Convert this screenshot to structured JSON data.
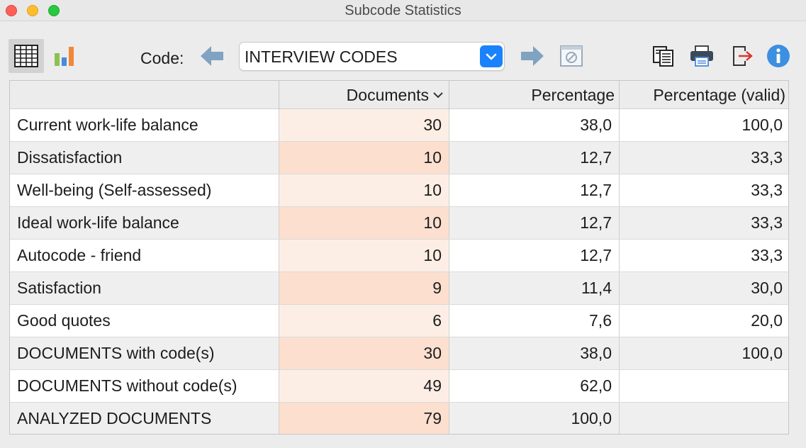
{
  "window": {
    "title": "Subcode Statistics"
  },
  "toolbar": {
    "code_label": "Code:",
    "selected_code": "INTERVIEW CODES"
  },
  "table": {
    "columns": [
      "",
      "Documents",
      "Percentage",
      "Percentage (valid)"
    ],
    "rows": [
      {
        "name": "Current work-life balance",
        "documents": "30",
        "percentage": "38,0",
        "percentage_valid": "100,0"
      },
      {
        "name": "Dissatisfaction",
        "documents": "10",
        "percentage": "12,7",
        "percentage_valid": "33,3"
      },
      {
        "name": "Well-being (Self-assessed)",
        "documents": "10",
        "percentage": "12,7",
        "percentage_valid": "33,3"
      },
      {
        "name": "Ideal work-life balance",
        "documents": "10",
        "percentage": "12,7",
        "percentage_valid": "33,3"
      },
      {
        "name": "Autocode - friend",
        "documents": "10",
        "percentage": "12,7",
        "percentage_valid": "33,3"
      },
      {
        "name": "Satisfaction",
        "documents": "9",
        "percentage": "11,4",
        "percentage_valid": "30,0"
      },
      {
        "name": "Good quotes",
        "documents": "6",
        "percentage": "7,6",
        "percentage_valid": "20,0"
      },
      {
        "name": "DOCUMENTS with code(s)",
        "documents": "30",
        "percentage": "38,0",
        "percentage_valid": "100,0"
      },
      {
        "name": "DOCUMENTS without code(s)",
        "documents": "49",
        "percentage": "62,0",
        "percentage_valid": ""
      },
      {
        "name": "ANALYZED DOCUMENTS",
        "documents": "79",
        "percentage": "100,0",
        "percentage_valid": ""
      }
    ]
  },
  "colors": {
    "accent": "#1a82fb",
    "documents_column_light": "#fdeee5",
    "documents_column_dark": "#fcdfcf",
    "nav_arrow": "#7fa3c0",
    "info": "#3d8fe0"
  },
  "icons": {
    "table_view": "table-view-icon",
    "chart_view": "bar-chart-icon",
    "previous": "arrow-left-icon",
    "next": "arrow-right-icon",
    "clear": "clear-filter-icon",
    "copy": "copy-icon",
    "print": "print-icon",
    "export": "export-icon",
    "info": "info-icon"
  }
}
